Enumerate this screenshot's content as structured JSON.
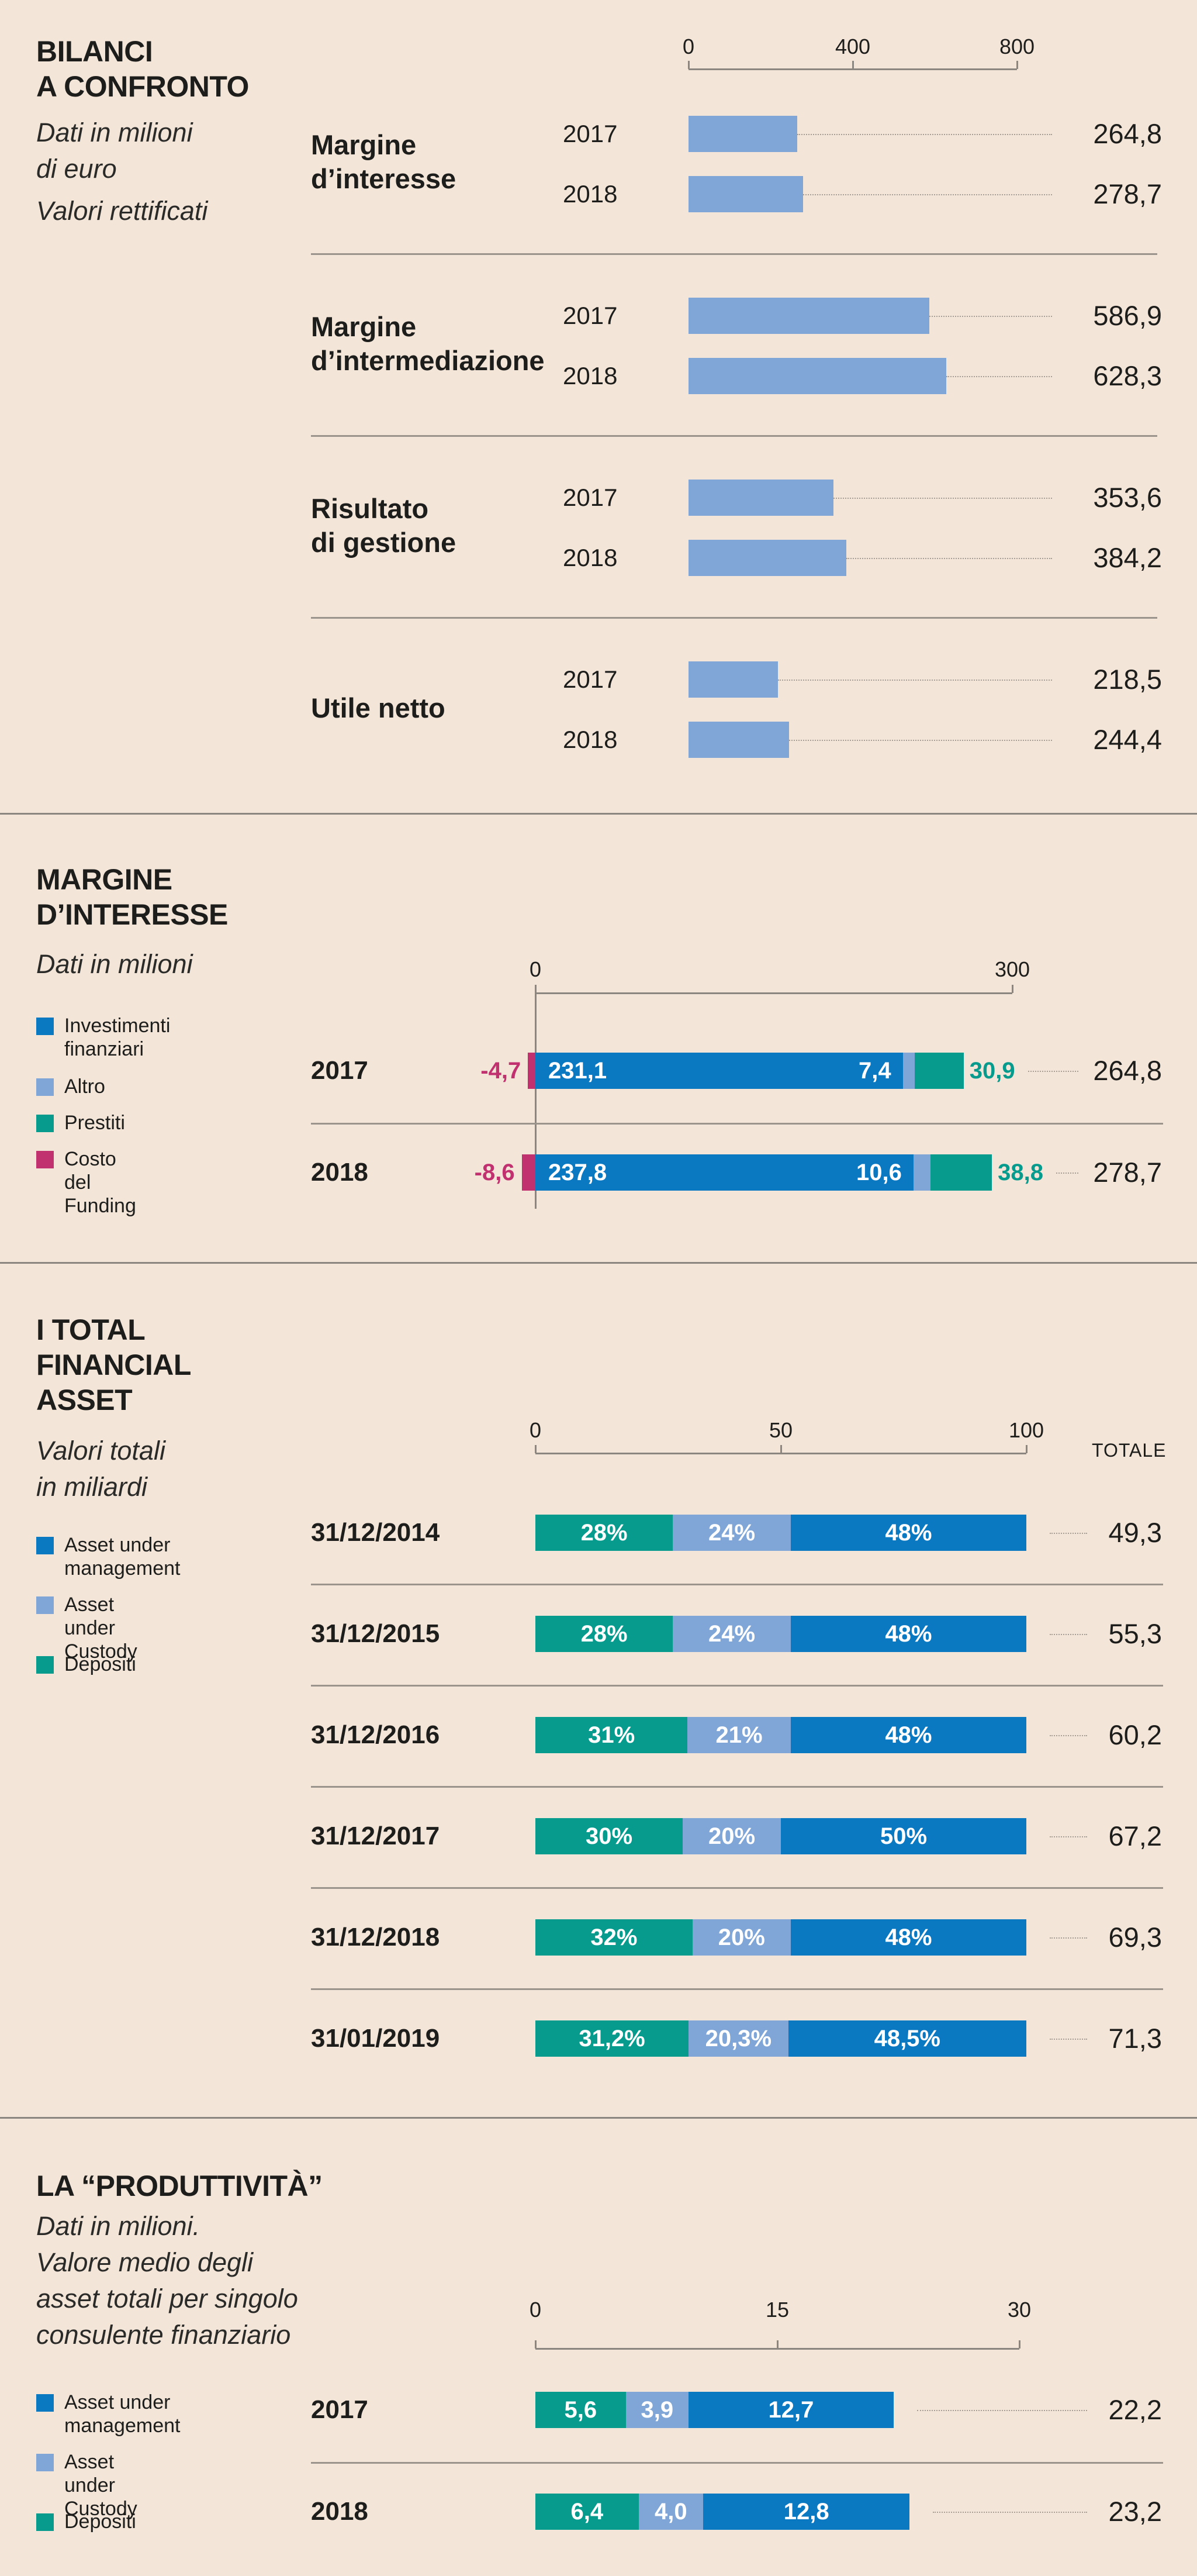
{
  "colors": {
    "background": "#f3e5d8",
    "light_blue": "#7fa6d6",
    "blue": "#0b78c2",
    "teal": "#079b8d",
    "magenta": "#c1306f"
  },
  "chart_data": [
    {
      "type": "bar",
      "title": "BILANCI\nA CONFRONTO",
      "subtitle": "Dati in milioni\ndi euro",
      "note": "Valori rettificati",
      "xlim": [
        0,
        800
      ],
      "ticks": [
        "0",
        "400",
        "800"
      ],
      "groups": [
        {
          "label": "Margine\nd’interesse",
          "rows": [
            {
              "year": "2017",
              "value": 264.8,
              "label": "264,8"
            },
            {
              "year": "2018",
              "value": 278.7,
              "label": "278,7"
            }
          ]
        },
        {
          "label": "Margine\nd’intermediazione",
          "rows": [
            {
              "year": "2017",
              "value": 586.9,
              "label": "586,9"
            },
            {
              "year": "2018",
              "value": 628.3,
              "label": "628,3"
            }
          ]
        },
        {
          "label": "Risultato\ndi gestione",
          "rows": [
            {
              "year": "2017",
              "value": 353.6,
              "label": "353,6"
            },
            {
              "year": "2018",
              "value": 384.2,
              "label": "384,2"
            }
          ]
        },
        {
          "label": "Utile netto",
          "rows": [
            {
              "year": "2017",
              "value": 218.5,
              "label": "218,5"
            },
            {
              "year": "2018",
              "value": 244.4,
              "label": "244,4"
            }
          ]
        }
      ]
    },
    {
      "type": "bar",
      "title": "MARGINE\nD’INTERESSE",
      "subtitle": "Dati in milioni",
      "xlim": [
        0,
        300
      ],
      "ticks": [
        "0",
        "300"
      ],
      "legend": [
        {
          "name": "Investimenti\nfinanziari",
          "color": "#0b78c2"
        },
        {
          "name": "Altro",
          "color": "#7fa6d6"
        },
        {
          "name": "Prestiti",
          "color": "#079b8d"
        },
        {
          "name": "Costo\ndel Funding",
          "color": "#c1306f"
        }
      ],
      "rows": [
        {
          "label": "2017",
          "funding": -4.7,
          "funding_label": "-4,7",
          "investimenti": 231.1,
          "investimenti_label": "231,1",
          "altro": 7.4,
          "altro_label": "7,4",
          "prestiti": 30.9,
          "prestiti_label": "30,9",
          "total_label": "264,8"
        },
        {
          "label": "2018",
          "funding": -8.6,
          "funding_label": "-8,6",
          "investimenti": 237.8,
          "investimenti_label": "237,8",
          "altro": 10.6,
          "altro_label": "10,6",
          "prestiti": 38.8,
          "prestiti_label": "38,8",
          "total_label": "278,7"
        }
      ]
    },
    {
      "type": "bar",
      "title": "I TOTAL\nFINANCIAL\nASSET",
      "subtitle": "Valori totali\nin miliardi",
      "xlim": [
        0,
        100
      ],
      "ticks": [
        "0",
        "50",
        "100"
      ],
      "total_header": "TOTALE",
      "legend": [
        {
          "name": "Asset under\nmanagement",
          "color": "#0b78c2"
        },
        {
          "name": "Asset under\nCustody",
          "color": "#7fa6d6"
        },
        {
          "name": "Depositi",
          "color": "#079b8d"
        }
      ],
      "rows": [
        {
          "label": "31/12/2014",
          "depositi": 28,
          "custody": 24,
          "management": 48,
          "labels": [
            "28%",
            "24%",
            "48%"
          ],
          "total": "49,3"
        },
        {
          "label": "31/12/2015",
          "depositi": 28,
          "custody": 24,
          "management": 48,
          "labels": [
            "28%",
            "24%",
            "48%"
          ],
          "total": "55,3"
        },
        {
          "label": "31/12/2016",
          "depositi": 31,
          "custody": 21,
          "management": 48,
          "labels": [
            "31%",
            "21%",
            "48%"
          ],
          "total": "60,2"
        },
        {
          "label": "31/12/2017",
          "depositi": 30,
          "custody": 20,
          "management": 50,
          "labels": [
            "30%",
            "20%",
            "50%"
          ],
          "total": "67,2"
        },
        {
          "label": "31/12/2018",
          "depositi": 32,
          "custody": 20,
          "management": 48,
          "labels": [
            "32%",
            "20%",
            "48%"
          ],
          "total": "69,3"
        },
        {
          "label": "31/01/2019",
          "depositi": 31.2,
          "custody": 20.3,
          "management": 48.5,
          "labels": [
            "31,2%",
            "20,3%",
            "48,5%"
          ],
          "total": "71,3"
        }
      ]
    },
    {
      "type": "bar",
      "title": "LA “PRODUTTIVITÀ”",
      "subtitle": "Dati in milioni.\nValore medio degli\nasset totali per singolo\nconsulente finanziario",
      "xlim": [
        0,
        30
      ],
      "ticks": [
        "0",
        "15",
        "30"
      ],
      "legend": [
        {
          "name": "Asset under\nmanagement",
          "color": "#0b78c2"
        },
        {
          "name": "Asset under\nCustody",
          "color": "#7fa6d6"
        },
        {
          "name": "Depositi",
          "color": "#079b8d"
        }
      ],
      "rows": [
        {
          "label": "2017",
          "depositi": 5.6,
          "custody": 3.9,
          "management": 12.7,
          "labels": [
            "5,6",
            "3,9",
            "12,7"
          ],
          "total": "22,2"
        },
        {
          "label": "2018",
          "depositi": 6.4,
          "custody": 4.0,
          "management": 12.8,
          "labels": [
            "6,4",
            "4,0",
            "12,8"
          ],
          "total": "23,2"
        }
      ]
    }
  ]
}
